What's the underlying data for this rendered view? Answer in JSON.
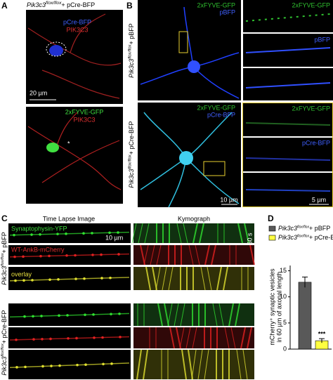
{
  "panels": {
    "genotypes": {
      "control": [
        "Pik3c3",
        "flox/flox",
        "+ pBFP"
      ],
      "cre": [
        "Pik3c3",
        "flox/flox",
        "+ pCre-BFP"
      ]
    },
    "a": {
      "label": "A",
      "top_channels": [
        "pCre-BFP",
        "PIK3C3"
      ],
      "scale": "20 µm",
      "bottom_channels": [
        "2xFYVE-GFP",
        "PIK3C3"
      ],
      "mark": "*"
    },
    "b": {
      "label": "B",
      "top_channels": [
        "2xFYVE-GFP",
        "pBFP"
      ],
      "top_strips": [
        "2xFYVE-GFP",
        "pBFP"
      ],
      "bottom_channels": [
        "2xFYVE-GFP",
        "pCre-BFP"
      ],
      "bottom_strips": [
        "2xFYVE-GFP",
        "pCre-BFP"
      ],
      "scale_big": "10 µm",
      "scale_strip": "5 µm"
    },
    "c": {
      "label": "C",
      "left_title": "Time Lapse Image",
      "right_title": "Kymograph",
      "channels": [
        "Synaptophysin-YFP",
        "WT-AnkB-mCherry",
        "overlay"
      ],
      "scale_x": "10 µm",
      "scale_t": "60 s"
    },
    "d": {
      "label": "D"
    }
  },
  "chart_data": {
    "type": "bar",
    "series": [
      {
        "name": [
          "Pik3c3",
          "flox/flox",
          "+ pBFP"
        ],
        "color": "#595959",
        "values": [
          12.8
        ],
        "errors": [
          1.0
        ]
      },
      {
        "name": [
          "Pik3c3",
          "flox/flox",
          "+ pCre-BFP"
        ],
        "color": "#ffff40",
        "values": [
          1.6
        ],
        "errors": [
          0.4
        ]
      }
    ],
    "ylabel": [
      "mCherry⁺ synaptic vesicles",
      "in 60 µm of axonal length"
    ],
    "ylim": [
      0,
      16
    ],
    "yticks": [
      0,
      5,
      10,
      15
    ],
    "annotations": [
      "***"
    ]
  }
}
